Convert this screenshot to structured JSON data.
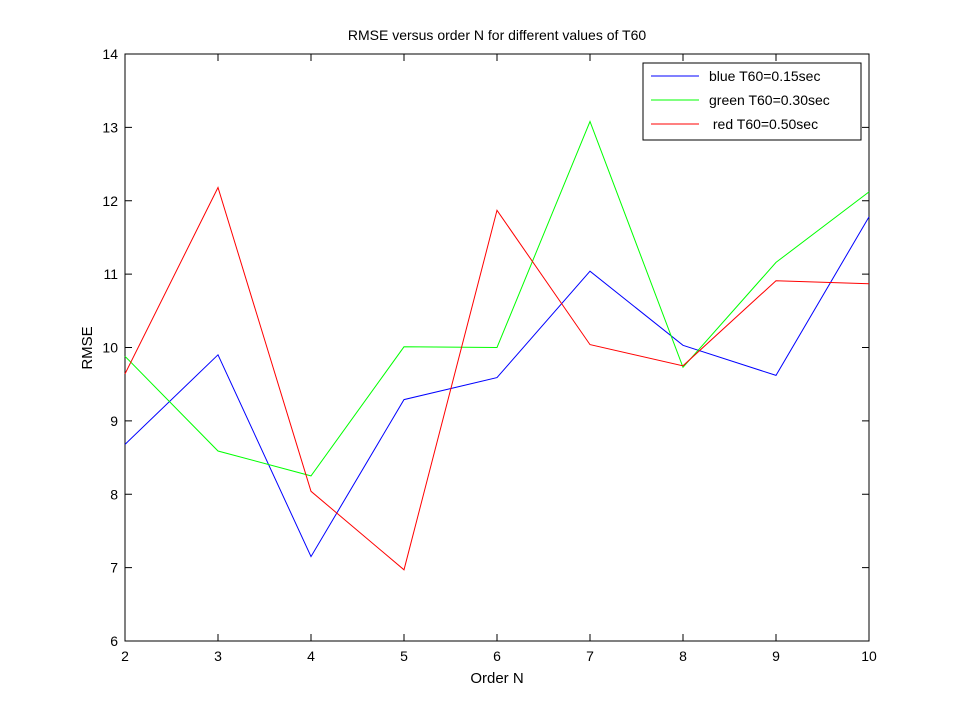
{
  "chart_data": {
    "type": "line",
    "title": "RMSE versus order N for different values of T60",
    "xlabel": "Order N",
    "ylabel": "RMSE",
    "xlim": [
      2,
      10
    ],
    "ylim": [
      6,
      14
    ],
    "xticks": [
      2,
      3,
      4,
      5,
      6,
      7,
      8,
      9,
      10
    ],
    "yticks": [
      6,
      7,
      8,
      9,
      10,
      11,
      12,
      13,
      14
    ],
    "grid": false,
    "legend_position": "top-right",
    "x": [
      2,
      3,
      4,
      5,
      6,
      7,
      8,
      9,
      10
    ],
    "series": [
      {
        "name": "blue T60=0.15sec",
        "color": "#0000ff",
        "values": [
          8.68,
          9.9,
          7.15,
          9.29,
          9.59,
          11.04,
          10.03,
          9.62,
          11.78
        ]
      },
      {
        "name": "green T60=0.30sec",
        "color": "#00ff00",
        "values": [
          9.88,
          8.59,
          8.25,
          10.01,
          10.0,
          13.08,
          9.73,
          11.16,
          12.12
        ]
      },
      {
        "name": " red T60=0.50sec",
        "color": "#ff0000",
        "values": [
          9.64,
          12.18,
          8.04,
          6.97,
          11.87,
          10.04,
          9.75,
          10.91,
          10.87
        ]
      }
    ]
  }
}
